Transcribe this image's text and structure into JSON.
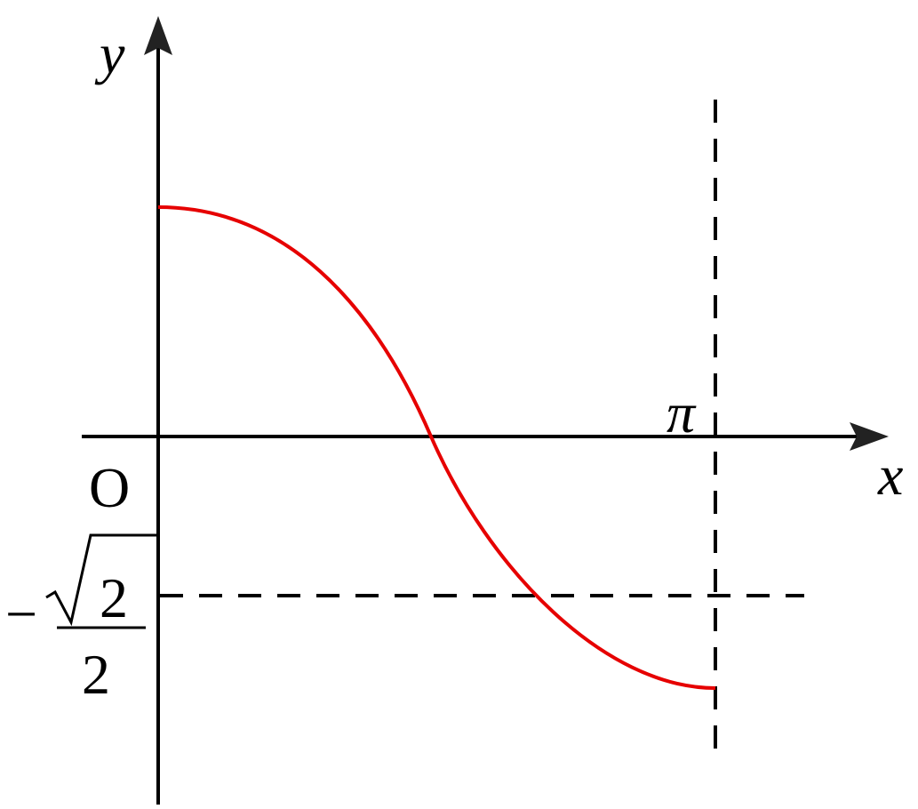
{
  "labels": {
    "y_axis": "y",
    "x_axis": "x",
    "origin": "O",
    "pi": "π",
    "neg_sqrt2_over_2": {
      "sign": "−",
      "radicand": "2",
      "denominator": "2"
    }
  }
}
